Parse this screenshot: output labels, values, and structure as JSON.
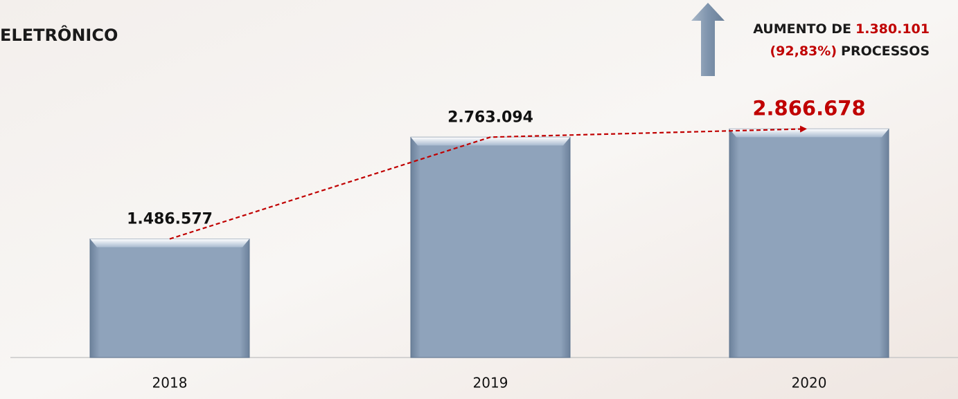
{
  "chart_data": {
    "type": "bar",
    "title": "ELETRÔNICO",
    "annotation": {
      "lines": [
        [
          {
            "text": "AUMENTO DE",
            "color": "#1a1a1a"
          },
          {
            "text": "1.380.101",
            "color": "#c00000"
          }
        ],
        [
          {
            "text": "(92,83%)",
            "color": "#c00000"
          },
          {
            "text": "PROCESSOS",
            "color": "#1a1a1a"
          }
        ]
      ]
    },
    "categories": [
      "2018",
      "2019",
      "2020"
    ],
    "values": [
      1486577,
      2763094,
      2866678
    ],
    "value_labels": [
      "1.486.577",
      "2.763.094",
      "2.866.678"
    ],
    "label_colors": [
      "#111111",
      "#111111",
      "#c00000"
    ],
    "color": "#8fa3bb",
    "trend_color": "#c00000",
    "ylim": [
      0,
      3000000
    ]
  }
}
